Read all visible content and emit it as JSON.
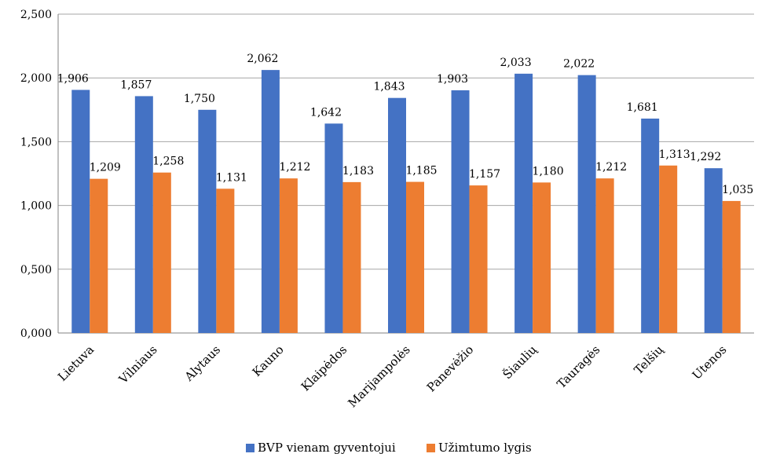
{
  "chart_data": {
    "type": "bar",
    "categories": [
      "Lietuva",
      "Vilniaus",
      "Alytaus",
      "Kauno",
      "Klaipėdos",
      "Marijampolės",
      "Panevėžio",
      "Šiaulių",
      "Tauragės",
      "Telšių",
      "Utenos"
    ],
    "series": [
      {
        "name": "BVP vienam gyventojui",
        "color": "#4472C4",
        "values": [
          1.906,
          1.857,
          1.75,
          2.062,
          1.642,
          1.843,
          1.903,
          2.033,
          2.022,
          1.681,
          1.292
        ],
        "labels": [
          "1,906",
          "1,857",
          "1,750",
          "2,062",
          "1,642",
          "1,843",
          "1,903",
          "2,033",
          "2,022",
          "1,681",
          "1,292"
        ]
      },
      {
        "name": "Užimtumo lygis",
        "color": "#ED7D31",
        "values": [
          1.209,
          1.258,
          1.131,
          1.212,
          1.183,
          1.185,
          1.157,
          1.18,
          1.212,
          1.313,
          1.035
        ],
        "labels": [
          "1,209",
          "1,258",
          "1,131",
          "1,212",
          "1,183",
          "1,185",
          "1,157",
          "1,180",
          "1,212",
          "1,313",
          "1,035"
        ]
      }
    ],
    "title": "",
    "xlabel": "",
    "ylabel": "",
    "ylim": [
      0,
      2.5
    ],
    "yticks": [
      0,
      0.5,
      1.0,
      1.5,
      2.0,
      2.5
    ],
    "ytick_labels": [
      "0,000",
      "0,500",
      "1,000",
      "1,500",
      "2,000",
      "2,500"
    ],
    "grid": "horizontal",
    "legend_position": "bottom",
    "category_label_rotation": "diagonal"
  }
}
